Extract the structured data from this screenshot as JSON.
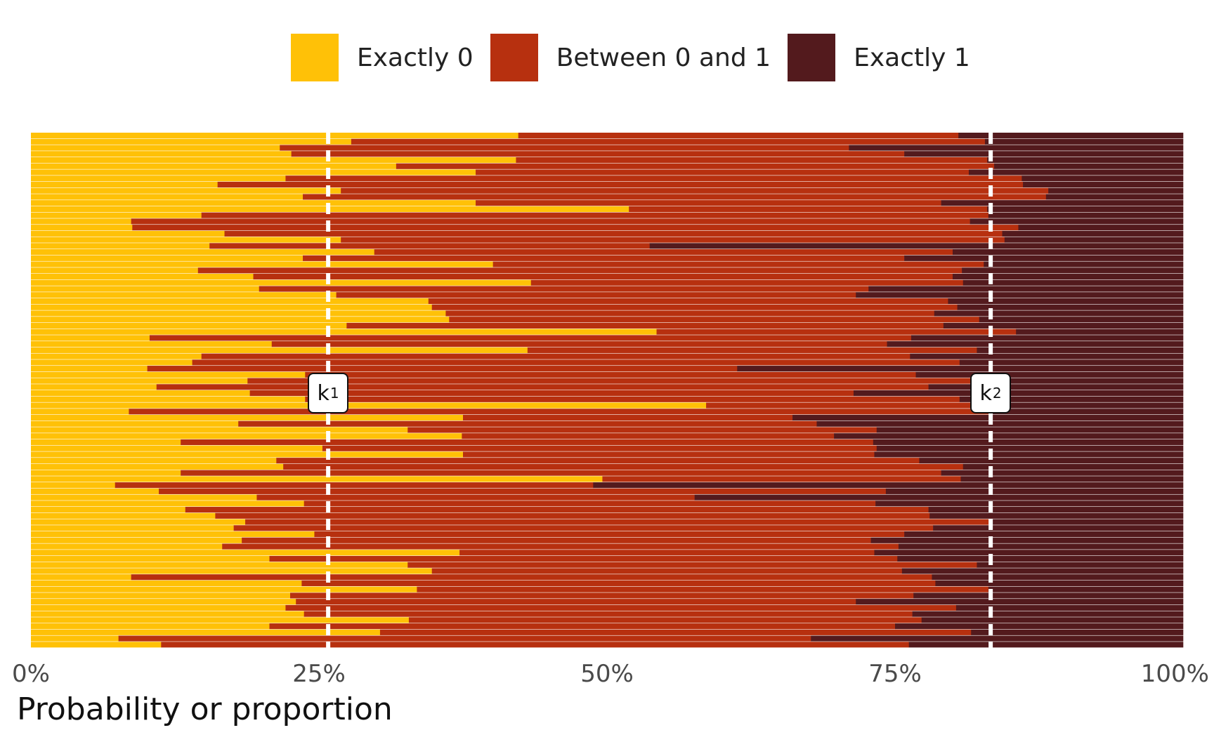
{
  "chart_data": {
    "type": "bar",
    "orientation": "horizontal",
    "stacked": true,
    "xlabel": "Probability or proportion",
    "ylabel": "",
    "xlim": [
      0,
      1
    ],
    "x_ticks": [
      "0%",
      "25%",
      "50%",
      "75%",
      "100%"
    ],
    "legend_position": "top",
    "grid": false,
    "series": [
      {
        "name": "Exactly 0",
        "color": "#FFC107"
      },
      {
        "name": "Between 0 and 1",
        "color": "#B7300F"
      },
      {
        "name": "Exactly 1",
        "color": "#531A1D"
      }
    ],
    "markers": [
      {
        "name": "k",
        "sub": "1",
        "value": 0.258
      },
      {
        "name": "k",
        "sub": "2",
        "value": 0.833
      }
    ],
    "rows": [
      [
        0.423,
        0.805
      ],
      [
        0.278,
        0.828
      ],
      [
        0.216,
        0.71
      ],
      [
        0.226,
        0.758
      ],
      [
        0.421,
        0.83
      ],
      [
        0.317,
        0.836
      ],
      [
        0.386,
        0.814
      ],
      [
        0.221,
        0.86
      ],
      [
        0.162,
        0.861
      ],
      [
        0.269,
        0.883
      ],
      [
        0.236,
        0.881
      ],
      [
        0.386,
        0.79
      ],
      [
        0.519,
        0.83
      ],
      [
        0.148,
        0.831
      ],
      [
        0.087,
        0.815
      ],
      [
        0.088,
        0.857
      ],
      [
        0.168,
        0.843
      ],
      [
        0.269,
        0.845
      ],
      [
        0.155,
        0.537
      ],
      [
        0.298,
        0.8
      ],
      [
        0.236,
        0.758
      ],
      [
        0.401,
        0.827
      ],
      [
        0.145,
        0.808
      ],
      [
        0.193,
        0.8
      ],
      [
        0.434,
        0.809
      ],
      [
        0.198,
        0.727
      ],
      [
        0.265,
        0.716
      ],
      [
        0.345,
        0.796
      ],
      [
        0.348,
        0.804
      ],
      [
        0.36,
        0.784
      ],
      [
        0.363,
        0.823
      ],
      [
        0.274,
        0.792
      ],
      [
        0.543,
        0.855
      ],
      [
        0.103,
        0.764
      ],
      [
        0.209,
        0.743
      ],
      [
        0.431,
        0.821
      ],
      [
        0.148,
        0.763
      ],
      [
        0.14,
        0.806
      ],
      [
        0.101,
        0.613
      ],
      [
        0.238,
        0.768
      ],
      [
        0.188,
        0.831
      ],
      [
        0.109,
        0.779
      ],
      [
        0.19,
        0.714
      ],
      [
        0.238,
        0.806
      ],
      [
        0.586,
        0.825
      ],
      [
        0.085,
        0.831
      ],
      [
        0.375,
        0.661
      ],
      [
        0.18,
        0.682
      ],
      [
        0.327,
        0.734
      ],
      [
        0.374,
        0.697
      ],
      [
        0.13,
        0.731
      ],
      [
        0.253,
        0.734
      ],
      [
        0.375,
        0.732
      ],
      [
        0.213,
        0.771
      ],
      [
        0.219,
        0.809
      ],
      [
        0.13,
        0.79
      ],
      [
        0.496,
        0.807
      ],
      [
        0.073,
        0.488
      ],
      [
        0.111,
        0.742
      ],
      [
        0.196,
        0.576
      ],
      [
        0.237,
        0.733
      ],
      [
        0.134,
        0.779
      ],
      [
        0.16,
        0.78
      ],
      [
        0.186,
        0.832
      ],
      [
        0.176,
        0.783
      ],
      [
        0.246,
        0.758
      ],
      [
        0.183,
        0.729
      ],
      [
        0.166,
        0.753
      ],
      [
        0.372,
        0.732
      ],
      [
        0.207,
        0.752
      ],
      [
        0.327,
        0.821
      ],
      [
        0.348,
        0.756
      ],
      [
        0.087,
        0.782
      ],
      [
        0.235,
        0.785
      ],
      [
        0.335,
        0.831
      ],
      [
        0.225,
        0.766
      ],
      [
        0.23,
        0.716
      ],
      [
        0.221,
        0.803
      ],
      [
        0.237,
        0.765
      ],
      [
        0.328,
        0.773
      ],
      [
        0.207,
        0.75
      ],
      [
        0.303,
        0.816
      ],
      [
        0.076,
        0.677
      ],
      [
        0.113,
        0.762
      ]
    ]
  }
}
